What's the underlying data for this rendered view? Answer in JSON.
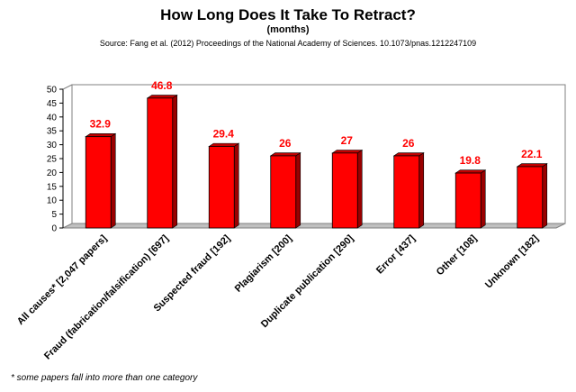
{
  "header": {
    "title": "How Long Does It Take To Retract?",
    "subtitle": "(months)",
    "source": "Source: Fang et al. (2012) Proceedings of the National Academy of Sciences. 10.1073/pnas.1212247109"
  },
  "footnote": "* some papers fall into more than one category",
  "chart_data": {
    "type": "bar",
    "title": "How Long Does It Take To Retract?",
    "subtitle": "(months)",
    "categories": [
      "All causes* [2,047 papers]",
      "Fraud (fabrication/falsification) [697]",
      "Suspected fraud  [192]",
      "Plagiarism  [200]",
      "Duplicate publication [290]",
      "Error [437]",
      "Other [108]",
      "Unknown  [182]"
    ],
    "values": [
      32.9,
      46.8,
      29.4,
      26,
      27,
      26,
      19.8,
      22.1
    ],
    "value_labels": [
      "32.9",
      "46.8",
      "29.4",
      "26",
      "27",
      "26",
      "19.8",
      "22.1"
    ],
    "yticks": [
      "0",
      "5",
      "10",
      "15",
      "20",
      "25",
      "30",
      "35",
      "40",
      "45",
      "50"
    ],
    "ylim": [
      0,
      50
    ],
    "grid": false,
    "legend": "none",
    "bar_color": "#ff0000",
    "label_color": "#ff0000"
  }
}
